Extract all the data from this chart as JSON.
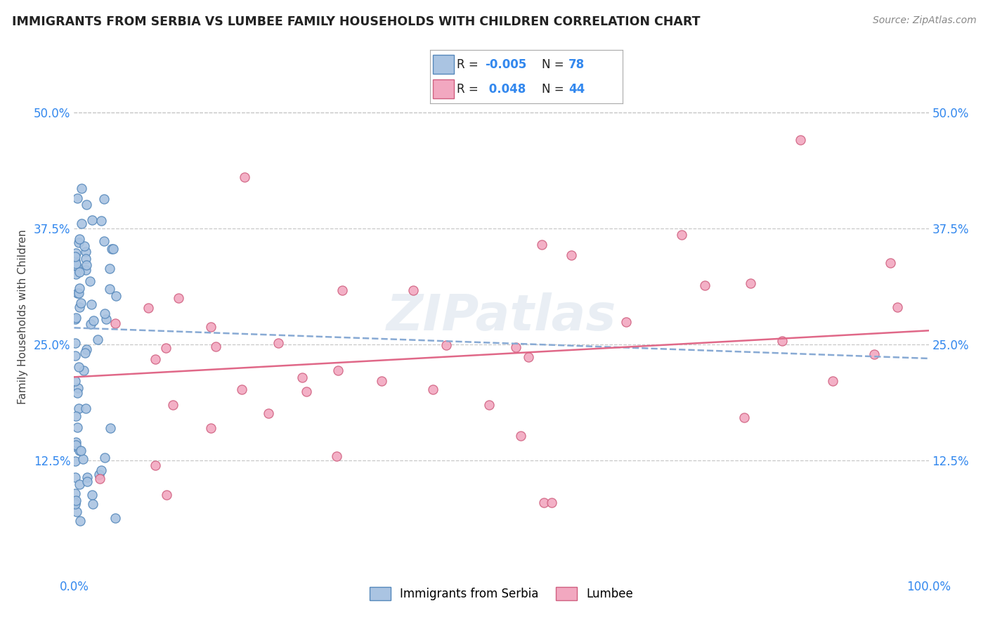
{
  "title": "IMMIGRANTS FROM SERBIA VS LUMBEE FAMILY HOUSEHOLDS WITH CHILDREN CORRELATION CHART",
  "source_text": "Source: ZipAtlas.com",
  "ylabel": "Family Households with Children",
  "legend_label1": "Immigrants from Serbia",
  "legend_label2": "Lumbee",
  "r1": "-0.005",
  "n1": "78",
  "r2": "0.048",
  "n2": "44",
  "serbia_color": "#aac4e2",
  "lumbee_color": "#f2a8c0",
  "serbia_edge": "#5588bb",
  "lumbee_edge": "#d06080",
  "trend_serbia_color": "#88aad4",
  "trend_lumbee_color": "#e06888",
  "xmin": 0.0,
  "xmax": 1.0,
  "ymin": 0.0,
  "ymax": 0.56,
  "yticks": [
    0.125,
    0.25,
    0.375,
    0.5
  ],
  "ytick_labels": [
    "12.5%",
    "25.0%",
    "37.5%",
    "50.0%"
  ],
  "xtick_left": "0.0%",
  "xtick_right": "100.0%",
  "background_color": "#ffffff",
  "grid_color": "#c8c8c8",
  "watermark": "ZIPatlas",
  "serbia_trend_x0": 0.0,
  "serbia_trend_y0": 0.268,
  "serbia_trend_x1": 1.0,
  "serbia_trend_y1": 0.235,
  "lumbee_trend_x0": 0.0,
  "lumbee_trend_y0": 0.215,
  "lumbee_trend_x1": 1.0,
  "lumbee_trend_y1": 0.265
}
